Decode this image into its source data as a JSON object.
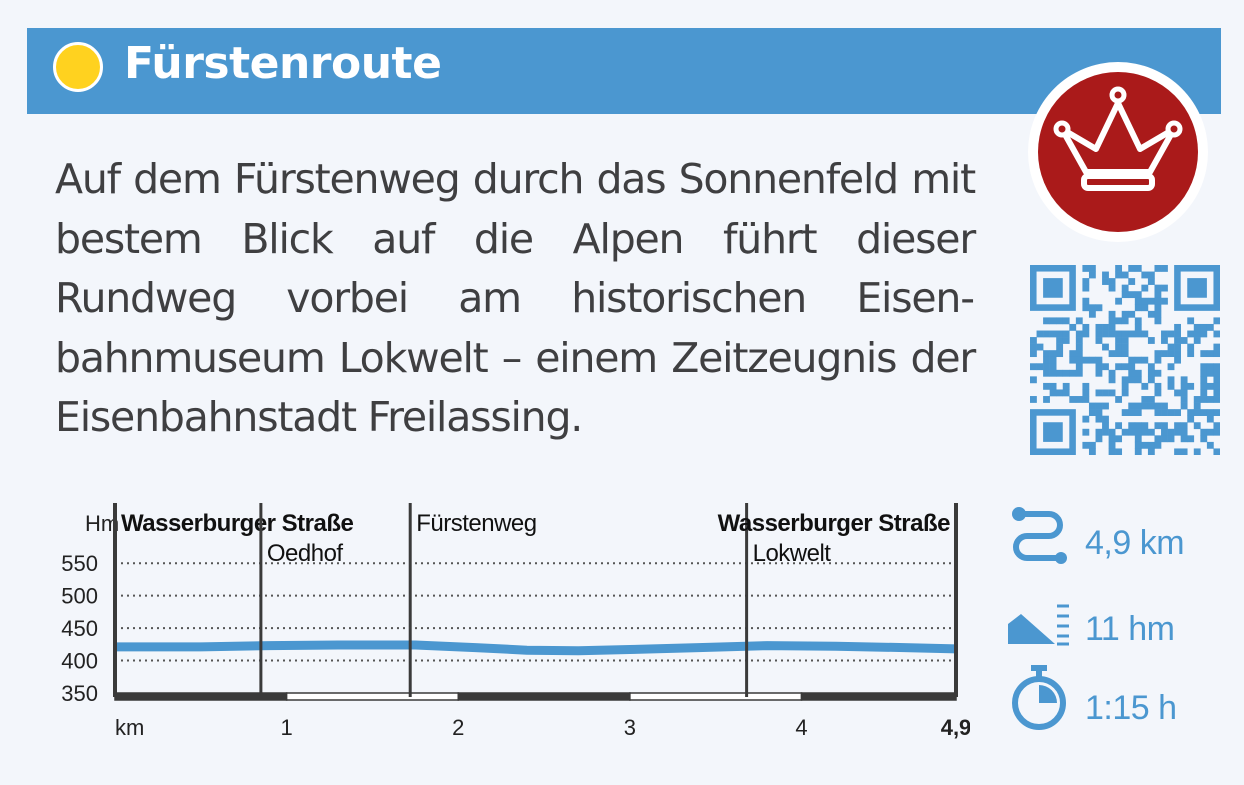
{
  "header": {
    "title": "Fürstenroute",
    "colors": {
      "bar": "#4b97d0",
      "sun": "#ffd21f",
      "badge": "#aa1a1a"
    },
    "badge_icon": "crown-icon"
  },
  "description": "Auf dem Fürstenweg durch das Sonnenfeld mit bestem Blick auf die Alpen führt die­ser Rundweg vorbei am historischen Eisen­bahnmuseum Lokwelt – einem Zeitzeug­nis der Eisenbahnstadt Freilassing.",
  "qr_icon": "qr-code-icon",
  "chart_data": {
    "type": "area",
    "ylabel": "Hm",
    "xlabel": "km",
    "ylim": [
      350,
      575
    ],
    "xlim": [
      0,
      4.9
    ],
    "y_ticks": [
      550,
      500,
      450,
      400,
      350
    ],
    "x_ticks": [
      "1",
      "2",
      "3",
      "4",
      "4,9"
    ],
    "grid": "dotted horizontal",
    "x": [
      0,
      0.5,
      0.9,
      1.3,
      1.75,
      2.1,
      2.4,
      2.7,
      3.0,
      3.4,
      3.8,
      4.2,
      4.6,
      4.9
    ],
    "y": [
      421,
      421,
      423,
      424,
      424,
      420,
      416,
      415,
      417,
      420,
      423,
      422,
      420,
      418
    ],
    "waypoints": [
      {
        "km": 0.0,
        "label": "Wasserburger Straße",
        "bold": true,
        "row": "top"
      },
      {
        "km": 0.85,
        "label": "Oedhof",
        "bold": false,
        "row": "second"
      },
      {
        "km": 1.72,
        "label": "Fürstenweg",
        "bold": false,
        "row": "top"
      },
      {
        "km": 3.68,
        "label": "Lokwelt",
        "bold": false,
        "row": "second"
      },
      {
        "km": 4.9,
        "label": "Wasserburger Straße",
        "bold": true,
        "row": "top"
      }
    ],
    "line_color": "#4b97d0"
  },
  "stats": [
    {
      "icon": "route-icon",
      "value": "4,9 km"
    },
    {
      "icon": "elevation-icon",
      "value": "11 hm"
    },
    {
      "icon": "stopwatch-icon",
      "value": "1:15 h"
    }
  ]
}
